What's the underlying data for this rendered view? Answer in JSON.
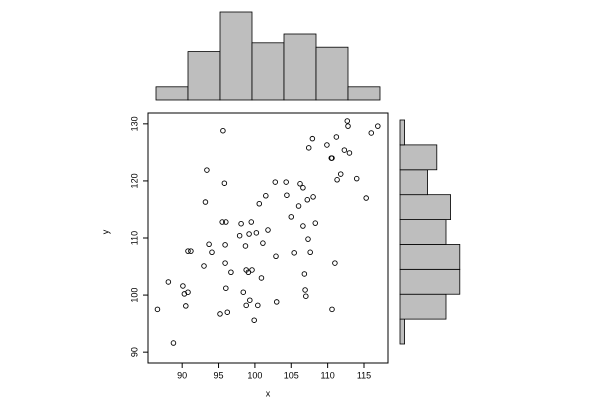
{
  "chart_data": [
    {
      "type": "scatter",
      "x_label": "x",
      "y_label": "y",
      "x": [
        86.6,
        88.1,
        88.8,
        90.1,
        90.3,
        90.5,
        90.8,
        90.8,
        91.2,
        93.0,
        93.2,
        93.4,
        93.7,
        94.1,
        95.2,
        95.5,
        95.6,
        95.8,
        95.9,
        95.9,
        96.0,
        96.0,
        96.2,
        96.7,
        97.9,
        98.1,
        98.4,
        98.7,
        98.8,
        98.8,
        99.1,
        99.2,
        99.3,
        99.5,
        99.6,
        99.9,
        100.2,
        100.4,
        100.6,
        100.9,
        101.1,
        101.5,
        101.8,
        102.8,
        102.9,
        103.0,
        104.3,
        104.4,
        105.0,
        105.4,
        106.0,
        106.2,
        106.6,
        106.6,
        106.8,
        106.9,
        107.0,
        107.2,
        107.3,
        107.4,
        107.6,
        107.9,
        108.0,
        108.3,
        109.9,
        110.5,
        110.6,
        110.6,
        111.0,
        111.2,
        111.3,
        111.8,
        112.3,
        112.7,
        112.8,
        113.0,
        114.0,
        115.3,
        116.0,
        116.9
      ],
      "values": [
        97.5,
        102.3,
        91.6,
        101.6,
        100.2,
        98.1,
        100.5,
        107.7,
        107.7,
        105.1,
        116.3,
        121.9,
        108.9,
        107.5,
        96.7,
        112.8,
        128.8,
        119.6,
        108.8,
        105.6,
        112.8,
        101.2,
        97.0,
        104.0,
        110.4,
        112.5,
        100.5,
        108.6,
        104.4,
        98.2,
        104.0,
        110.7,
        99.1,
        112.8,
        104.4,
        95.6,
        110.9,
        98.2,
        116.0,
        103.0,
        109.1,
        117.4,
        111.4,
        119.8,
        106.8,
        98.8,
        119.8,
        117.5,
        113.7,
        107.4,
        115.6,
        119.5,
        118.8,
        112.1,
        103.7,
        100.9,
        99.8,
        116.7,
        109.8,
        125.8,
        107.5,
        127.4,
        117.2,
        112.6,
        126.3,
        124.0,
        124.0,
        97.5,
        105.6,
        127.7,
        120.2,
        121.2,
        125.4,
        130.5,
        129.6,
        124.9,
        120.4,
        117.0,
        128.4,
        129.6
      ],
      "xlim": [
        85.3,
        118.3
      ],
      "ylim": [
        88.1,
        131.9
      ],
      "xticks": [
        90,
        95,
        100,
        105,
        110,
        115
      ],
      "yticks": [
        90,
        100,
        110,
        120,
        130
      ],
      "color": "#000000"
    },
    {
      "type": "histogram",
      "orientation": "vertical",
      "bins": [
        86,
        90.5,
        95,
        99.5,
        104,
        108.5,
        113,
        117.5
      ],
      "values": [
        3,
        11,
        20,
        13,
        15,
        12,
        3
      ],
      "color": "#bebebe"
    },
    {
      "type": "histogram",
      "orientation": "horizontal",
      "bins": [
        88,
        93,
        98,
        103,
        108,
        113,
        118,
        123,
        128,
        133
      ],
      "values": [
        1,
        10,
        13,
        13,
        10,
        11,
        6,
        8,
        1
      ],
      "color": "#bebebe"
    }
  ]
}
